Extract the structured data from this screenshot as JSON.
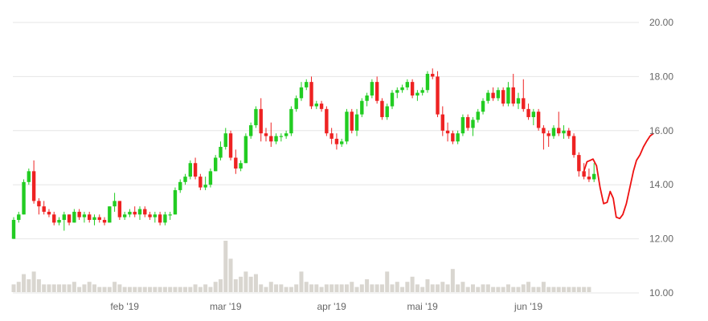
{
  "chart_data": {
    "type": "candlestick",
    "title": "",
    "xlabel": "",
    "ylabel": "",
    "ylim": [
      10,
      20
    ],
    "yticks": [
      "10.00",
      "12.00",
      "14.00",
      "16.00",
      "18.00",
      "20.00"
    ],
    "x_tick_labels": [
      {
        "label": "feb '19",
        "index": 22
      },
      {
        "label": "mar '19",
        "index": 42
      },
      {
        "label": "apr '19",
        "index": 63
      },
      {
        "label": "mai '19",
        "index": 81
      },
      {
        "label": "jun '19",
        "index": 102
      }
    ],
    "grid": true,
    "legend": "none",
    "colors": {
      "up": "#22cc22",
      "down": "#ee2222",
      "volume": "#d9d6d0",
      "forecast": "#ee1111",
      "grid": "#e6e6e6",
      "label": "#666666"
    },
    "series": [
      {
        "kind": "ohlc",
        "values": [
          [
            12.0,
            12.8,
            12.0,
            12.7
          ],
          [
            12.7,
            13.0,
            12.6,
            12.9
          ],
          [
            12.9,
            14.2,
            12.9,
            14.1
          ],
          [
            14.1,
            14.6,
            14.0,
            14.5
          ],
          [
            14.5,
            14.9,
            13.3,
            13.4
          ],
          [
            13.4,
            13.5,
            12.9,
            13.2
          ],
          [
            13.2,
            13.4,
            12.9,
            13.0
          ],
          [
            13.0,
            13.1,
            12.8,
            12.9
          ],
          [
            12.9,
            13.0,
            12.5,
            12.6
          ],
          [
            12.6,
            12.8,
            12.5,
            12.7
          ],
          [
            12.7,
            13.0,
            12.3,
            12.9
          ],
          [
            12.9,
            12.9,
            12.5,
            12.6
          ],
          [
            12.6,
            13.1,
            12.6,
            13.0
          ],
          [
            13.0,
            13.1,
            12.7,
            12.8
          ],
          [
            12.8,
            13.0,
            12.6,
            12.9
          ],
          [
            12.9,
            13.0,
            12.6,
            12.7
          ],
          [
            12.7,
            12.9,
            12.5,
            12.8
          ],
          [
            12.8,
            12.9,
            12.6,
            12.7
          ],
          [
            12.7,
            12.8,
            12.5,
            12.6
          ],
          [
            12.6,
            13.2,
            12.6,
            13.2
          ],
          [
            13.2,
            13.7,
            13.0,
            13.4
          ],
          [
            13.4,
            13.4,
            12.7,
            12.8
          ],
          [
            12.8,
            13.0,
            12.7,
            12.9
          ],
          [
            12.9,
            13.1,
            12.8,
            13.0
          ],
          [
            13.0,
            13.2,
            12.8,
            12.9
          ],
          [
            12.9,
            13.2,
            12.7,
            13.1
          ],
          [
            13.1,
            13.2,
            12.8,
            12.9
          ],
          [
            12.9,
            13.0,
            12.7,
            12.8
          ],
          [
            12.8,
            13.0,
            12.6,
            12.9
          ],
          [
            12.9,
            13.0,
            12.5,
            12.6
          ],
          [
            12.6,
            13.0,
            12.5,
            12.9
          ],
          [
            12.9,
            13.0,
            12.7,
            12.9
          ],
          [
            12.9,
            13.9,
            12.9,
            13.8
          ],
          [
            13.8,
            14.2,
            13.7,
            14.1
          ],
          [
            14.1,
            14.4,
            14.0,
            14.3
          ],
          [
            14.3,
            14.9,
            14.2,
            14.8
          ],
          [
            14.8,
            15.0,
            14.2,
            14.3
          ],
          [
            14.3,
            14.4,
            13.8,
            13.9
          ],
          [
            13.9,
            14.3,
            13.8,
            14.0
          ],
          [
            14.0,
            14.6,
            13.9,
            14.5
          ],
          [
            14.5,
            15.1,
            14.5,
            15.0
          ],
          [
            15.0,
            15.6,
            14.9,
            15.4
          ],
          [
            15.4,
            16.1,
            15.3,
            15.9
          ],
          [
            15.9,
            16.0,
            14.9,
            15.0
          ],
          [
            15.0,
            15.3,
            14.4,
            14.6
          ],
          [
            14.6,
            14.9,
            14.5,
            14.8
          ],
          [
            14.8,
            15.9,
            14.8,
            15.8
          ],
          [
            15.8,
            16.3,
            15.7,
            16.2
          ],
          [
            16.2,
            16.9,
            16.1,
            16.8
          ],
          [
            16.8,
            17.2,
            15.6,
            15.9
          ],
          [
            15.9,
            16.1,
            15.6,
            15.8
          ],
          [
            15.8,
            16.3,
            15.4,
            15.6
          ],
          [
            15.6,
            15.9,
            15.5,
            15.8
          ],
          [
            15.8,
            15.9,
            15.6,
            15.8
          ],
          [
            15.8,
            16.0,
            15.7,
            15.9
          ],
          [
            15.9,
            16.9,
            15.8,
            16.8
          ],
          [
            16.8,
            17.3,
            16.7,
            17.2
          ],
          [
            17.2,
            17.8,
            17.1,
            17.6
          ],
          [
            17.6,
            17.9,
            17.5,
            17.8
          ],
          [
            17.8,
            18.0,
            16.8,
            16.9
          ],
          [
            16.9,
            17.1,
            16.8,
            17.0
          ],
          [
            17.0,
            17.1,
            16.7,
            16.8
          ],
          [
            16.8,
            16.9,
            15.8,
            15.9
          ],
          [
            15.9,
            16.1,
            15.5,
            15.7
          ],
          [
            15.7,
            15.9,
            15.3,
            15.5
          ],
          [
            15.5,
            15.7,
            15.4,
            15.6
          ],
          [
            15.6,
            16.8,
            15.5,
            16.7
          ],
          [
            16.7,
            16.8,
            15.9,
            16.0
          ],
          [
            16.0,
            16.8,
            15.8,
            16.6
          ],
          [
            16.6,
            17.2,
            16.5,
            17.1
          ],
          [
            17.1,
            17.4,
            16.9,
            17.3
          ],
          [
            17.3,
            17.9,
            17.2,
            17.8
          ],
          [
            17.8,
            18.0,
            17.0,
            17.1
          ],
          [
            17.1,
            17.2,
            16.4,
            16.5
          ],
          [
            16.5,
            17.0,
            16.4,
            16.9
          ],
          [
            16.9,
            17.5,
            16.8,
            17.4
          ],
          [
            17.4,
            17.6,
            17.2,
            17.5
          ],
          [
            17.5,
            17.7,
            17.4,
            17.6
          ],
          [
            17.6,
            17.9,
            17.5,
            17.8
          ],
          [
            17.8,
            17.9,
            17.2,
            17.3
          ],
          [
            17.3,
            17.5,
            17.1,
            17.4
          ],
          [
            17.4,
            17.6,
            17.3,
            17.5
          ],
          [
            17.5,
            18.2,
            17.4,
            18.1
          ],
          [
            18.1,
            18.3,
            17.9,
            18.0
          ],
          [
            18.0,
            18.2,
            16.5,
            16.6
          ],
          [
            16.6,
            16.9,
            15.8,
            16.0
          ],
          [
            16.0,
            16.3,
            15.6,
            15.9
          ],
          [
            15.9,
            16.0,
            15.5,
            15.6
          ],
          [
            15.6,
            16.0,
            15.5,
            15.9
          ],
          [
            15.9,
            16.6,
            15.8,
            16.5
          ],
          [
            16.5,
            16.6,
            16.0,
            16.1
          ],
          [
            16.1,
            16.5,
            15.8,
            16.4
          ],
          [
            16.4,
            16.8,
            16.3,
            16.7
          ],
          [
            16.7,
            17.2,
            16.6,
            17.1
          ],
          [
            17.1,
            17.5,
            17.0,
            17.4
          ],
          [
            17.4,
            17.6,
            17.1,
            17.2
          ],
          [
            17.2,
            17.6,
            17.1,
            17.5
          ],
          [
            17.5,
            17.6,
            16.9,
            17.0
          ],
          [
            17.0,
            17.8,
            16.9,
            17.6
          ],
          [
            17.6,
            18.1,
            16.9,
            17.0
          ],
          [
            17.0,
            17.4,
            16.8,
            17.2
          ],
          [
            17.2,
            17.9,
            16.7,
            16.8
          ],
          [
            16.8,
            17.0,
            16.4,
            16.5
          ],
          [
            16.5,
            16.8,
            16.2,
            16.7
          ],
          [
            16.7,
            16.8,
            16.0,
            16.1
          ],
          [
            16.1,
            16.2,
            15.3,
            15.9
          ],
          [
            15.9,
            16.0,
            15.4,
            15.8
          ],
          [
            15.8,
            16.2,
            15.7,
            16.1
          ],
          [
            16.1,
            16.7,
            15.8,
            15.9
          ],
          [
            15.9,
            16.2,
            15.7,
            16.0
          ],
          [
            16.0,
            16.1,
            15.7,
            15.8
          ],
          [
            15.8,
            15.9,
            15.0,
            15.1
          ],
          [
            15.1,
            15.2,
            14.3,
            14.5
          ],
          [
            14.5,
            14.8,
            14.2,
            14.3
          ],
          [
            14.3,
            14.6,
            14.1,
            14.2
          ],
          [
            14.2,
            14.8,
            14.1,
            14.4
          ]
        ]
      },
      {
        "kind": "volume",
        "values": [
          3,
          4,
          7,
          5,
          8,
          5,
          3,
          3,
          3,
          3,
          3,
          3,
          4,
          2,
          3,
          4,
          3,
          2,
          2,
          2,
          4,
          3,
          2,
          2,
          2,
          2,
          2,
          2,
          2,
          2,
          2,
          2,
          2,
          2,
          2,
          2,
          3,
          2,
          3,
          2,
          4,
          5,
          20,
          13,
          5,
          6,
          8,
          6,
          7,
          3,
          2,
          4,
          3,
          3,
          2,
          2,
          3,
          8,
          4,
          3,
          3,
          2,
          3,
          3,
          3,
          3,
          3,
          4,
          2,
          3,
          5,
          3,
          3,
          3,
          8,
          3,
          4,
          2,
          4,
          6,
          3,
          2,
          5,
          3,
          3,
          4,
          3,
          9,
          3,
          4,
          2,
          3,
          2,
          3,
          3,
          2,
          2,
          2,
          3,
          2,
          2,
          3,
          4,
          2,
          2,
          4,
          2,
          2,
          2,
          2,
          2,
          2,
          2,
          2,
          2
        ]
      },
      {
        "kind": "forecast-line",
        "x": [
          113,
          113.6,
          114.2,
          114.8,
          115.5,
          116.2,
          116.9,
          117.6,
          118.2,
          118.8,
          119.4,
          120.1,
          120.7,
          121.4,
          122.1,
          122.8,
          123.4,
          124.1,
          124.8,
          125.4,
          126.1,
          126.8
        ],
        "values": [
          14.5,
          14.85,
          14.9,
          14.95,
          14.7,
          13.9,
          13.3,
          13.35,
          13.75,
          13.5,
          12.8,
          12.75,
          12.9,
          13.3,
          13.9,
          14.5,
          14.9,
          15.1,
          15.4,
          15.6,
          15.8,
          15.9
        ]
      }
    ]
  }
}
